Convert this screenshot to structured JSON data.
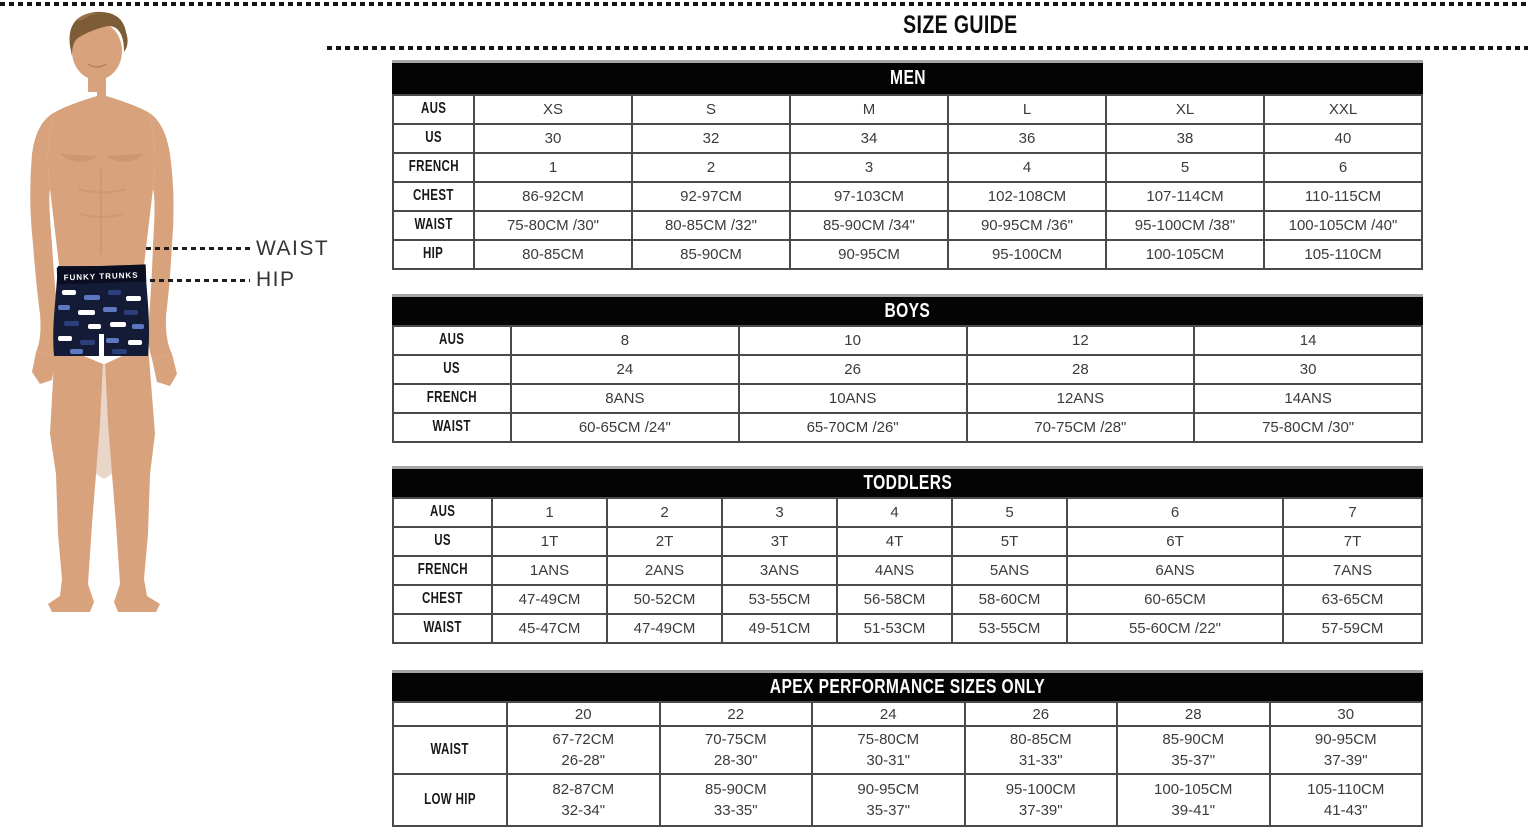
{
  "page": {
    "title": "SIZE GUIDE"
  },
  "figure": {
    "waist_label": "WAIST",
    "hip_label": "HIP",
    "trunks_brand_text": "FUNKY TRUNKS"
  },
  "colors": {
    "header_bar": "#040404",
    "header_text": "#ffffff",
    "grid_border": "#4a4a4a",
    "dash_line": "#151515",
    "skin": "#d8a27c",
    "skin_shadow": "#c18a60",
    "hair": "#7d5c38",
    "trunks": "#141b36",
    "waistband": "#0a0e20"
  },
  "tables": [
    {
      "id": "men",
      "title": "MEN",
      "rows": [
        {
          "label": "AUS",
          "cells": [
            "XS",
            "S",
            "M",
            "L",
            "XL",
            "XXL"
          ]
        },
        {
          "label": "US",
          "cells": [
            "30",
            "32",
            "34",
            "36",
            "38",
            "40"
          ]
        },
        {
          "label": "FRENCH",
          "cells": [
            "1",
            "2",
            "3",
            "4",
            "5",
            "6"
          ]
        },
        {
          "label": "CHEST",
          "cells": [
            "86-92CM",
            "92-97CM",
            "97-103CM",
            "102-108CM",
            "107-114CM",
            "110-115CM"
          ]
        },
        {
          "label": "WAIST",
          "cells": [
            "75-80CM /30\"",
            "80-85CM /32\"",
            "85-90CM /34\"",
            "90-95CM /36\"",
            "95-100CM /38\"",
            "100-105CM /40\""
          ]
        },
        {
          "label": "HIP",
          "cells": [
            "80-85CM",
            "85-90CM",
            "90-95CM",
            "95-100CM",
            "100-105CM",
            "105-110CM"
          ]
        }
      ]
    },
    {
      "id": "boys",
      "title": "BOYS",
      "rows": [
        {
          "label": "AUS",
          "cells": [
            "8",
            "10",
            "12",
            "14"
          ]
        },
        {
          "label": "US",
          "cells": [
            "24",
            "26",
            "28",
            "30"
          ]
        },
        {
          "label": "FRENCH",
          "cells": [
            "8ANS",
            "10ANS",
            "12ANS",
            "14ANS"
          ]
        },
        {
          "label": "WAIST",
          "cells": [
            "60-65CM /24\"",
            "65-70CM /26\"",
            "70-75CM /28\"",
            "75-80CM /30\""
          ]
        }
      ]
    },
    {
      "id": "toddlers",
      "title": "TODDLERS",
      "rows": [
        {
          "label": "AUS",
          "cells": [
            "1",
            "2",
            "3",
            "4",
            "5",
            "6",
            "7"
          ]
        },
        {
          "label": "US",
          "cells": [
            "1T",
            "2T",
            "3T",
            "4T",
            "5T",
            "6T",
            "7T"
          ]
        },
        {
          "label": "FRENCH",
          "cells": [
            "1ANS",
            "2ANS",
            "3ANS",
            "4ANS",
            "5ANS",
            "6ANS",
            "7ANS"
          ]
        },
        {
          "label": "CHEST",
          "cells": [
            "47-49CM",
            "50-52CM",
            "53-55CM",
            "56-58CM",
            "58-60CM",
            "60-65CM",
            "63-65CM"
          ]
        },
        {
          "label": "WAIST",
          "cells": [
            "45-47CM",
            "47-49CM",
            "49-51CM",
            "51-53CM",
            "53-55CM",
            "55-60CM /22\"",
            "57-59CM"
          ]
        }
      ]
    },
    {
      "id": "apex",
      "title": "APEX PERFORMANCE SIZES ONLY",
      "rows": [
        {
          "label": "",
          "cells": [
            "20",
            "22",
            "24",
            "26",
            "28",
            "30"
          ]
        },
        {
          "label": "WAIST",
          "cells": [
            "67-72CM\n26-28\"",
            "70-75CM\n28-30\"",
            "75-80CM\n30-31\"",
            "80-85CM\n31-33\"",
            "85-90CM\n35-37\"",
            "90-95CM\n37-39\""
          ]
        },
        {
          "label": "LOW HIP",
          "cells": [
            "82-87CM\n32-34\"",
            "85-90CM\n33-35\"",
            "90-95CM\n35-37\"",
            "95-100CM\n37-39\"",
            "100-105CM\n39-41\"",
            "105-110CM\n41-43\""
          ]
        }
      ]
    }
  ]
}
